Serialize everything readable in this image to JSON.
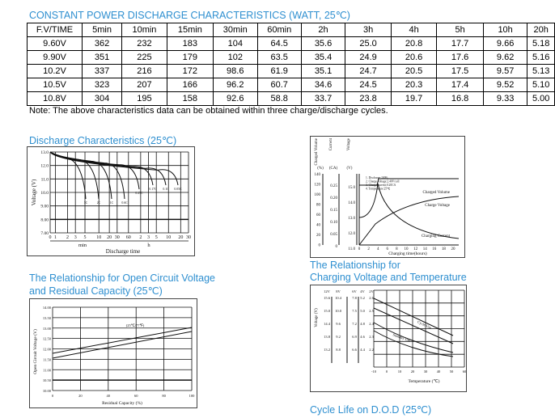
{
  "table": {
    "title": "CONSTANT POWER DISCHARGE CHARACTERISTICS (WATT, 25℃)",
    "headers": [
      "F.V/TIME",
      "5min",
      "10min",
      "15min",
      "30min",
      "60min",
      "2h",
      "3h",
      "4h",
      "5h",
      "10h",
      "20h"
    ],
    "rows": [
      [
        "9.60V",
        "362",
        "232",
        "183",
        "104",
        "64.5",
        "35.6",
        "25.0",
        "20.8",
        "17.7",
        "9.66",
        "5.18"
      ],
      [
        "9.90V",
        "351",
        "225",
        "179",
        "102",
        "63.5",
        "35.4",
        "24.9",
        "20.6",
        "17.6",
        "9.62",
        "5.16"
      ],
      [
        "10.2V",
        "337",
        "216",
        "172",
        "98.6",
        "61.9",
        "35.1",
        "24.7",
        "20.5",
        "17.5",
        "9.57",
        "5.13"
      ],
      [
        "10.5V",
        "323",
        "207",
        "166",
        "96.2",
        "60.7",
        "34.6",
        "24.5",
        "20.3",
        "17.4",
        "9.52",
        "5.10"
      ],
      [
        "10.8V",
        "304",
        "195",
        "158",
        "92.6",
        "58.8",
        "33.7",
        "23.8",
        "19.7",
        "16.8",
        "9.33",
        "5.00"
      ]
    ],
    "note": "Note: The above characteristics data can be obtained within three charge/discharge cycles."
  },
  "discharge": {
    "title": "Discharge Characteristics (25℃)",
    "ylabel": "Voltage (V)",
    "yticks": [
      "13.0",
      "12.0",
      "11.0",
      "10.0",
      "9.00",
      "8.00",
      "7.00"
    ],
    "xticks": [
      "0",
      "1",
      "2",
      "3",
      "5",
      "10",
      "20",
      "30",
      "60",
      "2",
      "3",
      "5",
      "10",
      "20",
      "30"
    ],
    "min": "min",
    "h": "h",
    "xlabel": "Discharge time",
    "curve_labels": [
      "3C",
      "2C",
      "1C",
      "0.6C",
      "0.25C",
      "0.17C",
      "0.1C",
      "0.05C"
    ]
  },
  "charging": {
    "axis_heads": [
      "Charged Volume",
      "Current",
      "Voltage"
    ],
    "units": [
      "(%)",
      "(CA)",
      "(V)"
    ],
    "pct": [
      "140",
      "120",
      "100",
      "80",
      "60",
      "40",
      "20",
      "0"
    ],
    "ca": [
      "0.25",
      "0.20",
      "0.15",
      "0.10",
      "0.05",
      "0"
    ],
    "v": [
      "15.0",
      "14.0",
      "13.0",
      "12.0",
      "11.0"
    ],
    "xticks": [
      "0",
      "2",
      "4",
      "6",
      "8",
      "10",
      "12",
      "14",
      "16",
      "18",
      "20"
    ],
    "xlabel": "Charging time(hours)",
    "notes": [
      "1. Discharge:100%",
      "2. Charge voltage:2.40V/cell",
      "3. Charge current:0.20CA",
      "4. Temperature:25℃"
    ],
    "series": [
      "Charged Volume",
      "Charge Voltage",
      "Charging Current"
    ]
  },
  "ocv": {
    "title1": "The Relationship for Open Circuit Voltage",
    "title2": "and Residual Capacity (25℃)",
    "ylabel": "Open Circuit Voltage (V)",
    "yticks": [
      "14.00",
      "13.50",
      "13.00",
      "12.50",
      "12.00",
      "11.50",
      "11.00",
      "10.50",
      "10.00"
    ],
    "xticks": [
      "0",
      "20",
      "40",
      "60",
      "80",
      "100"
    ],
    "xlabel": "Residual Capacity (%)",
    "legend": "(25℃/77℉)"
  },
  "temp": {
    "title1": "The Relationship for",
    "title2": "Charging Voltage and Temperature",
    "ylabel": "Voltage (V)",
    "heads": [
      "12V",
      "8V",
      "6V",
      "4V",
      "2V"
    ],
    "rows": [
      [
        "15.6",
        "10.4",
        "7.8",
        "5.2",
        "2.6"
      ],
      [
        "15.0",
        "10.0",
        "7.5",
        "5.0",
        "2.5"
      ],
      [
        "14.4",
        "9.6",
        "7.2",
        "4.8",
        "2.4"
      ],
      [
        "13.8",
        "9.2",
        "6.9",
        "4.6",
        "2.3"
      ],
      [
        "13.2",
        "8.8",
        "6.6",
        "4.4",
        "2.2"
      ]
    ],
    "xticks": [
      "-10",
      "0",
      "10",
      "20",
      "30",
      "40",
      "50",
      "60"
    ],
    "xlabel": "Temperature (℃)",
    "cycle": "Cycle Use",
    "standby": "Standby Use"
  },
  "cycle": {
    "title": "Cycle Life on D.O.D (25℃)"
  }
}
